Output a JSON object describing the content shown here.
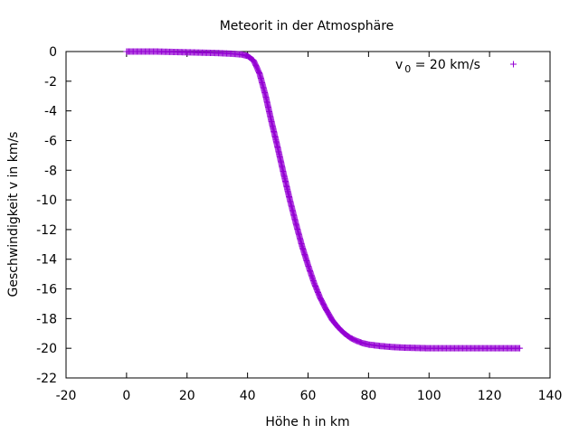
{
  "chart_data": {
    "type": "scatter",
    "title": "Meteorit in der Atmosphäre",
    "xlabel": "Höhe h in km",
    "ylabel": "Geschwindigkeit v in km/s",
    "xlim": [
      -20,
      140
    ],
    "ylim": [
      -22,
      0
    ],
    "xticks": [
      "-20",
      "0",
      "20",
      "40",
      "60",
      "80",
      "100",
      "120",
      "140"
    ],
    "yticks": [
      "0",
      "-2",
      "-4",
      "-6",
      "-8",
      "-10",
      "-12",
      "-14",
      "-16",
      "-18",
      "-20",
      "-22"
    ],
    "grid": false,
    "legend_position": "top-right",
    "marker": "plus",
    "color": "#9400d3",
    "series": [
      {
        "name_parts": {
          "base": "v",
          "sub": "0",
          "rest": " = 20 km/s"
        },
        "x": [
          0,
          10,
          20,
          30,
          35,
          38,
          40,
          42,
          44,
          46,
          48,
          50,
          52,
          54,
          56,
          58,
          60,
          62,
          64,
          66,
          68,
          70,
          72,
          74,
          76,
          78,
          80,
          84,
          88,
          92,
          96,
          100,
          110,
          120,
          130
        ],
        "y": [
          0,
          0,
          -0.05,
          -0.1,
          -0.15,
          -0.2,
          -0.3,
          -0.6,
          -1.5,
          -3.0,
          -4.8,
          -6.5,
          -8.3,
          -10.0,
          -11.6,
          -13.1,
          -14.4,
          -15.6,
          -16.6,
          -17.4,
          -18.1,
          -18.6,
          -19.0,
          -19.3,
          -19.5,
          -19.65,
          -19.75,
          -19.85,
          -19.92,
          -19.96,
          -19.98,
          -20.0,
          -20.0,
          -20.0,
          -20.0
        ]
      }
    ]
  }
}
